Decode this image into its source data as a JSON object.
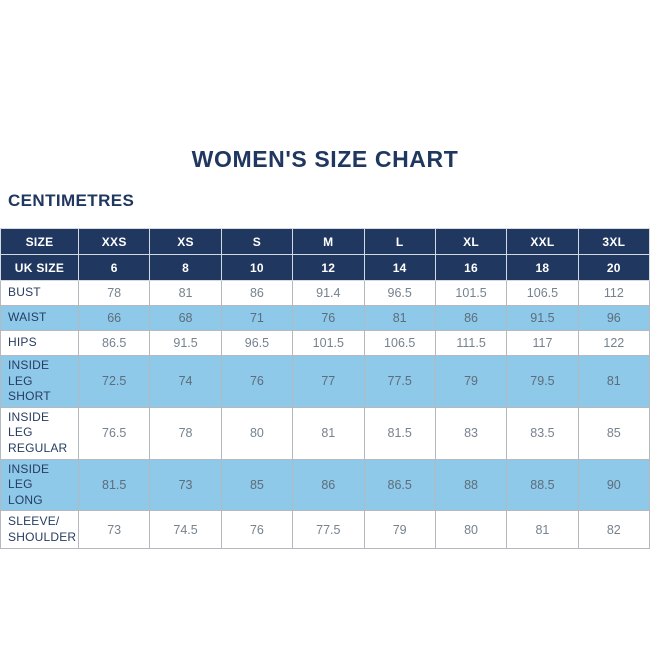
{
  "colors": {
    "navy": "#20375f",
    "header_text": "#ffffff",
    "shaded_blue": "#8ec9e9",
    "value_text": "#76828e",
    "value_text_shaded": "#5d6d7b",
    "label_text": "#273c61",
    "border": "#b3b9be",
    "background": "#ffffff"
  },
  "chart_data": {
    "type": "table",
    "title": "WOMEN'S SIZE CHART",
    "units": "CENTIMETRES",
    "header_rows": [
      {
        "label": "SIZE",
        "values": [
          "XXS",
          "XS",
          "S",
          "M",
          "L",
          "XL",
          "XXL",
          "3XL"
        ]
      },
      {
        "label": "UK SIZE",
        "values": [
          "6",
          "8",
          "10",
          "12",
          "14",
          "16",
          "18",
          "20"
        ]
      }
    ],
    "rows": [
      {
        "label": "BUST",
        "shaded": false,
        "values": [
          "78",
          "81",
          "86",
          "91.4",
          "96.5",
          "101.5",
          "106.5",
          "112"
        ]
      },
      {
        "label": "WAIST",
        "shaded": true,
        "values": [
          "66",
          "68",
          "71",
          "76",
          "81",
          "86",
          "91.5",
          "96"
        ]
      },
      {
        "label": "HIPS",
        "shaded": false,
        "values": [
          "86.5",
          "91.5",
          "96.5",
          "101.5",
          "106.5",
          "111.5",
          "117",
          "122"
        ]
      },
      {
        "label": "INSIDE LEG\nSHORT",
        "shaded": true,
        "values": [
          "72.5",
          "74",
          "76",
          "77",
          "77.5",
          "79",
          "79.5",
          "81"
        ]
      },
      {
        "label": "INSIDE LEG\nREGULAR",
        "shaded": false,
        "values": [
          "76.5",
          "78",
          "80",
          "81",
          "81.5",
          "83",
          "83.5",
          "85"
        ]
      },
      {
        "label": "INSIDE LEG\nLONG",
        "shaded": true,
        "values": [
          "81.5",
          "73",
          "85",
          "86",
          "86.5",
          "88",
          "88.5",
          "90"
        ]
      },
      {
        "label": "SLEEVE/\nSHOULDER",
        "shaded": false,
        "values": [
          "73",
          "74.5",
          "76",
          "77.5",
          "79",
          "80",
          "81",
          "82"
        ]
      }
    ]
  }
}
